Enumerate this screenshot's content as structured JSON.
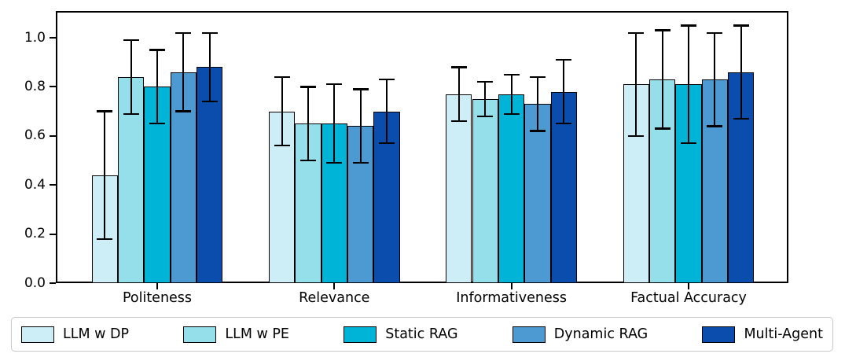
{
  "figure": {
    "background_color": "#ffffff",
    "axis_color": "#000000",
    "legend_border_color": "#c9c9c9"
  },
  "chart_data": {
    "type": "bar",
    "title": "",
    "xlabel": "",
    "ylabel": "",
    "categories": [
      "Politeness",
      "Relevance",
      "Informativeness",
      "Factual Accuracy"
    ],
    "series": [
      {
        "name": "LLM w DP",
        "color": "#cdeef7",
        "values": [
          0.44,
          0.7,
          0.77,
          0.81
        ],
        "errors": [
          0.26,
          0.14,
          0.11,
          0.21
        ]
      },
      {
        "name": "LLM w PE",
        "color": "#94dfea",
        "values": [
          0.84,
          0.65,
          0.75,
          0.83
        ],
        "errors": [
          0.15,
          0.15,
          0.07,
          0.2
        ]
      },
      {
        "name": "Static RAG",
        "color": "#00b4d8",
        "values": [
          0.8,
          0.65,
          0.77,
          0.81
        ],
        "errors": [
          0.15,
          0.16,
          0.08,
          0.24
        ]
      },
      {
        "name": "Dynamic RAG",
        "color": "#4d9ad2",
        "values": [
          0.86,
          0.64,
          0.73,
          0.83
        ],
        "errors": [
          0.16,
          0.15,
          0.11,
          0.19
        ]
      },
      {
        "name": "Multi-Agent",
        "color": "#0b4dad",
        "values": [
          0.88,
          0.7,
          0.78,
          0.86
        ],
        "errors": [
          0.14,
          0.13,
          0.13,
          0.19
        ]
      }
    ],
    "yticks": [
      0.0,
      0.2,
      0.4,
      0.6,
      0.8,
      1.0
    ],
    "ylim": [
      0.0,
      1.11
    ],
    "grid": false,
    "error_bar_color": "#000000",
    "bar_edge_color": "#000000",
    "legend_position": "bottom",
    "legend_labels": [
      "LLM w DP",
      "LLM w PE",
      "Static RAG",
      "Dynamic RAG",
      "Multi-Agent"
    ]
  }
}
